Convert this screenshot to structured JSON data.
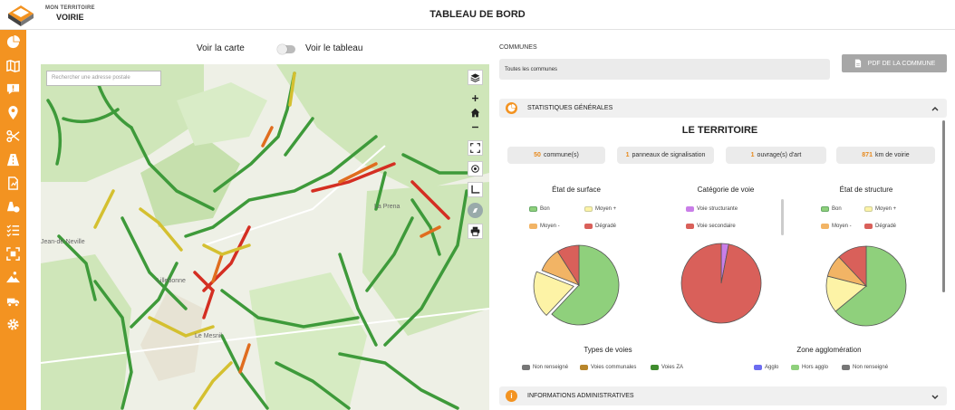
{
  "header": {
    "logo_line1": "MON TERRITOIRE",
    "logo_line2": "VOIRIE",
    "title": "TABLEAU DE BORD"
  },
  "sidebar": {
    "items": [
      {
        "icon": "pie-chart-icon"
      },
      {
        "icon": "map-icon"
      },
      {
        "icon": "alert-comment-icon"
      },
      {
        "icon": "location-pin-icon"
      },
      {
        "icon": "scissors-icon"
      },
      {
        "icon": "road-icon"
      },
      {
        "icon": "report-icon"
      },
      {
        "icon": "cones-icon"
      },
      {
        "icon": "checklist-icon"
      },
      {
        "icon": "scan-icon"
      },
      {
        "icon": "roadworks-icon"
      },
      {
        "icon": "vehicle-icon"
      },
      {
        "icon": "settings-icon"
      }
    ]
  },
  "map_view": {
    "voir_carte": "Voir la carte",
    "voir_tableau": "Voir le tableau",
    "search_placeholder": "Rechercher une adresse postale",
    "labels": {
      "la_prena": "La Prena",
      "lillebonne": "Lillebonne",
      "jean_de_neville": "Jean-de-Neville",
      "le_maillot": "Le Mesnil"
    }
  },
  "dashboard": {
    "communes_label": "COMMUNES",
    "communes_value": "Toutes les communes",
    "pdf_button": "PDF DE LA COMMUNE",
    "stats_section": "STATISTIQUES GÉNÉRALES",
    "territoire_title": "LE TERRITOIRE",
    "stats": [
      {
        "value": "50",
        "label": "commune(s)"
      },
      {
        "value": "1",
        "label": "panneaux de signalisation"
      },
      {
        "value": "1",
        "label": "ouvrage(s) d'art"
      },
      {
        "value": "871",
        "label": "km de voirie"
      }
    ],
    "chart_surface": {
      "title": "État de surface",
      "legend": [
        "Bon",
        "Moyen +",
        "Moyen -",
        "Dégradé"
      ]
    },
    "chart_categorie": {
      "title": "Catégorie de voie",
      "legend": [
        "Voie structurante",
        "Voie secondaire"
      ]
    },
    "chart_structure": {
      "title": "État de structure",
      "legend": [
        "Bon",
        "Moyen +",
        "Moyen -",
        "Dégradé"
      ]
    },
    "types_title": "Types de voies",
    "types_legend": [
      "Non renseigné",
      "Voies communales",
      "Voies ZA"
    ],
    "zone_title": "Zone agglomération",
    "zone_legend": [
      "Agglo",
      "Hors agglo",
      "Non renseigné"
    ],
    "admin_section": "INFORMATIONS ADMINISTRATIVES"
  },
  "chart_data": [
    {
      "type": "pie",
      "title": "État de surface",
      "categories": [
        "Bon",
        "Moyen +",
        "Moyen -",
        "Dégradé"
      ],
      "values": [
        62,
        19,
        10,
        9
      ],
      "colors": [
        "#8fd07c",
        "#fdf3a6",
        "#f2b465",
        "#d9605a"
      ],
      "exploded_index": 1
    },
    {
      "type": "pie",
      "title": "Catégorie de voie",
      "categories": [
        "Voie structurante",
        "Voie secondaire"
      ],
      "values": [
        3,
        97
      ],
      "colors": [
        "#c97ee8",
        "#d9605a"
      ]
    },
    {
      "type": "pie",
      "title": "État de structure",
      "categories": [
        "Bon",
        "Moyen +",
        "Moyen -",
        "Dégradé"
      ],
      "values": [
        64,
        15,
        9,
        12
      ],
      "colors": [
        "#8fd07c",
        "#fdf3a6",
        "#f2b465",
        "#d9605a"
      ]
    }
  ],
  "colors": {
    "accent": "#f39321",
    "legend_types": [
      "#777777",
      "#b8862b",
      "#3f8c2e"
    ],
    "legend_zone": [
      "#6c6cf0",
      "#8fd07c",
      "#777777"
    ]
  }
}
